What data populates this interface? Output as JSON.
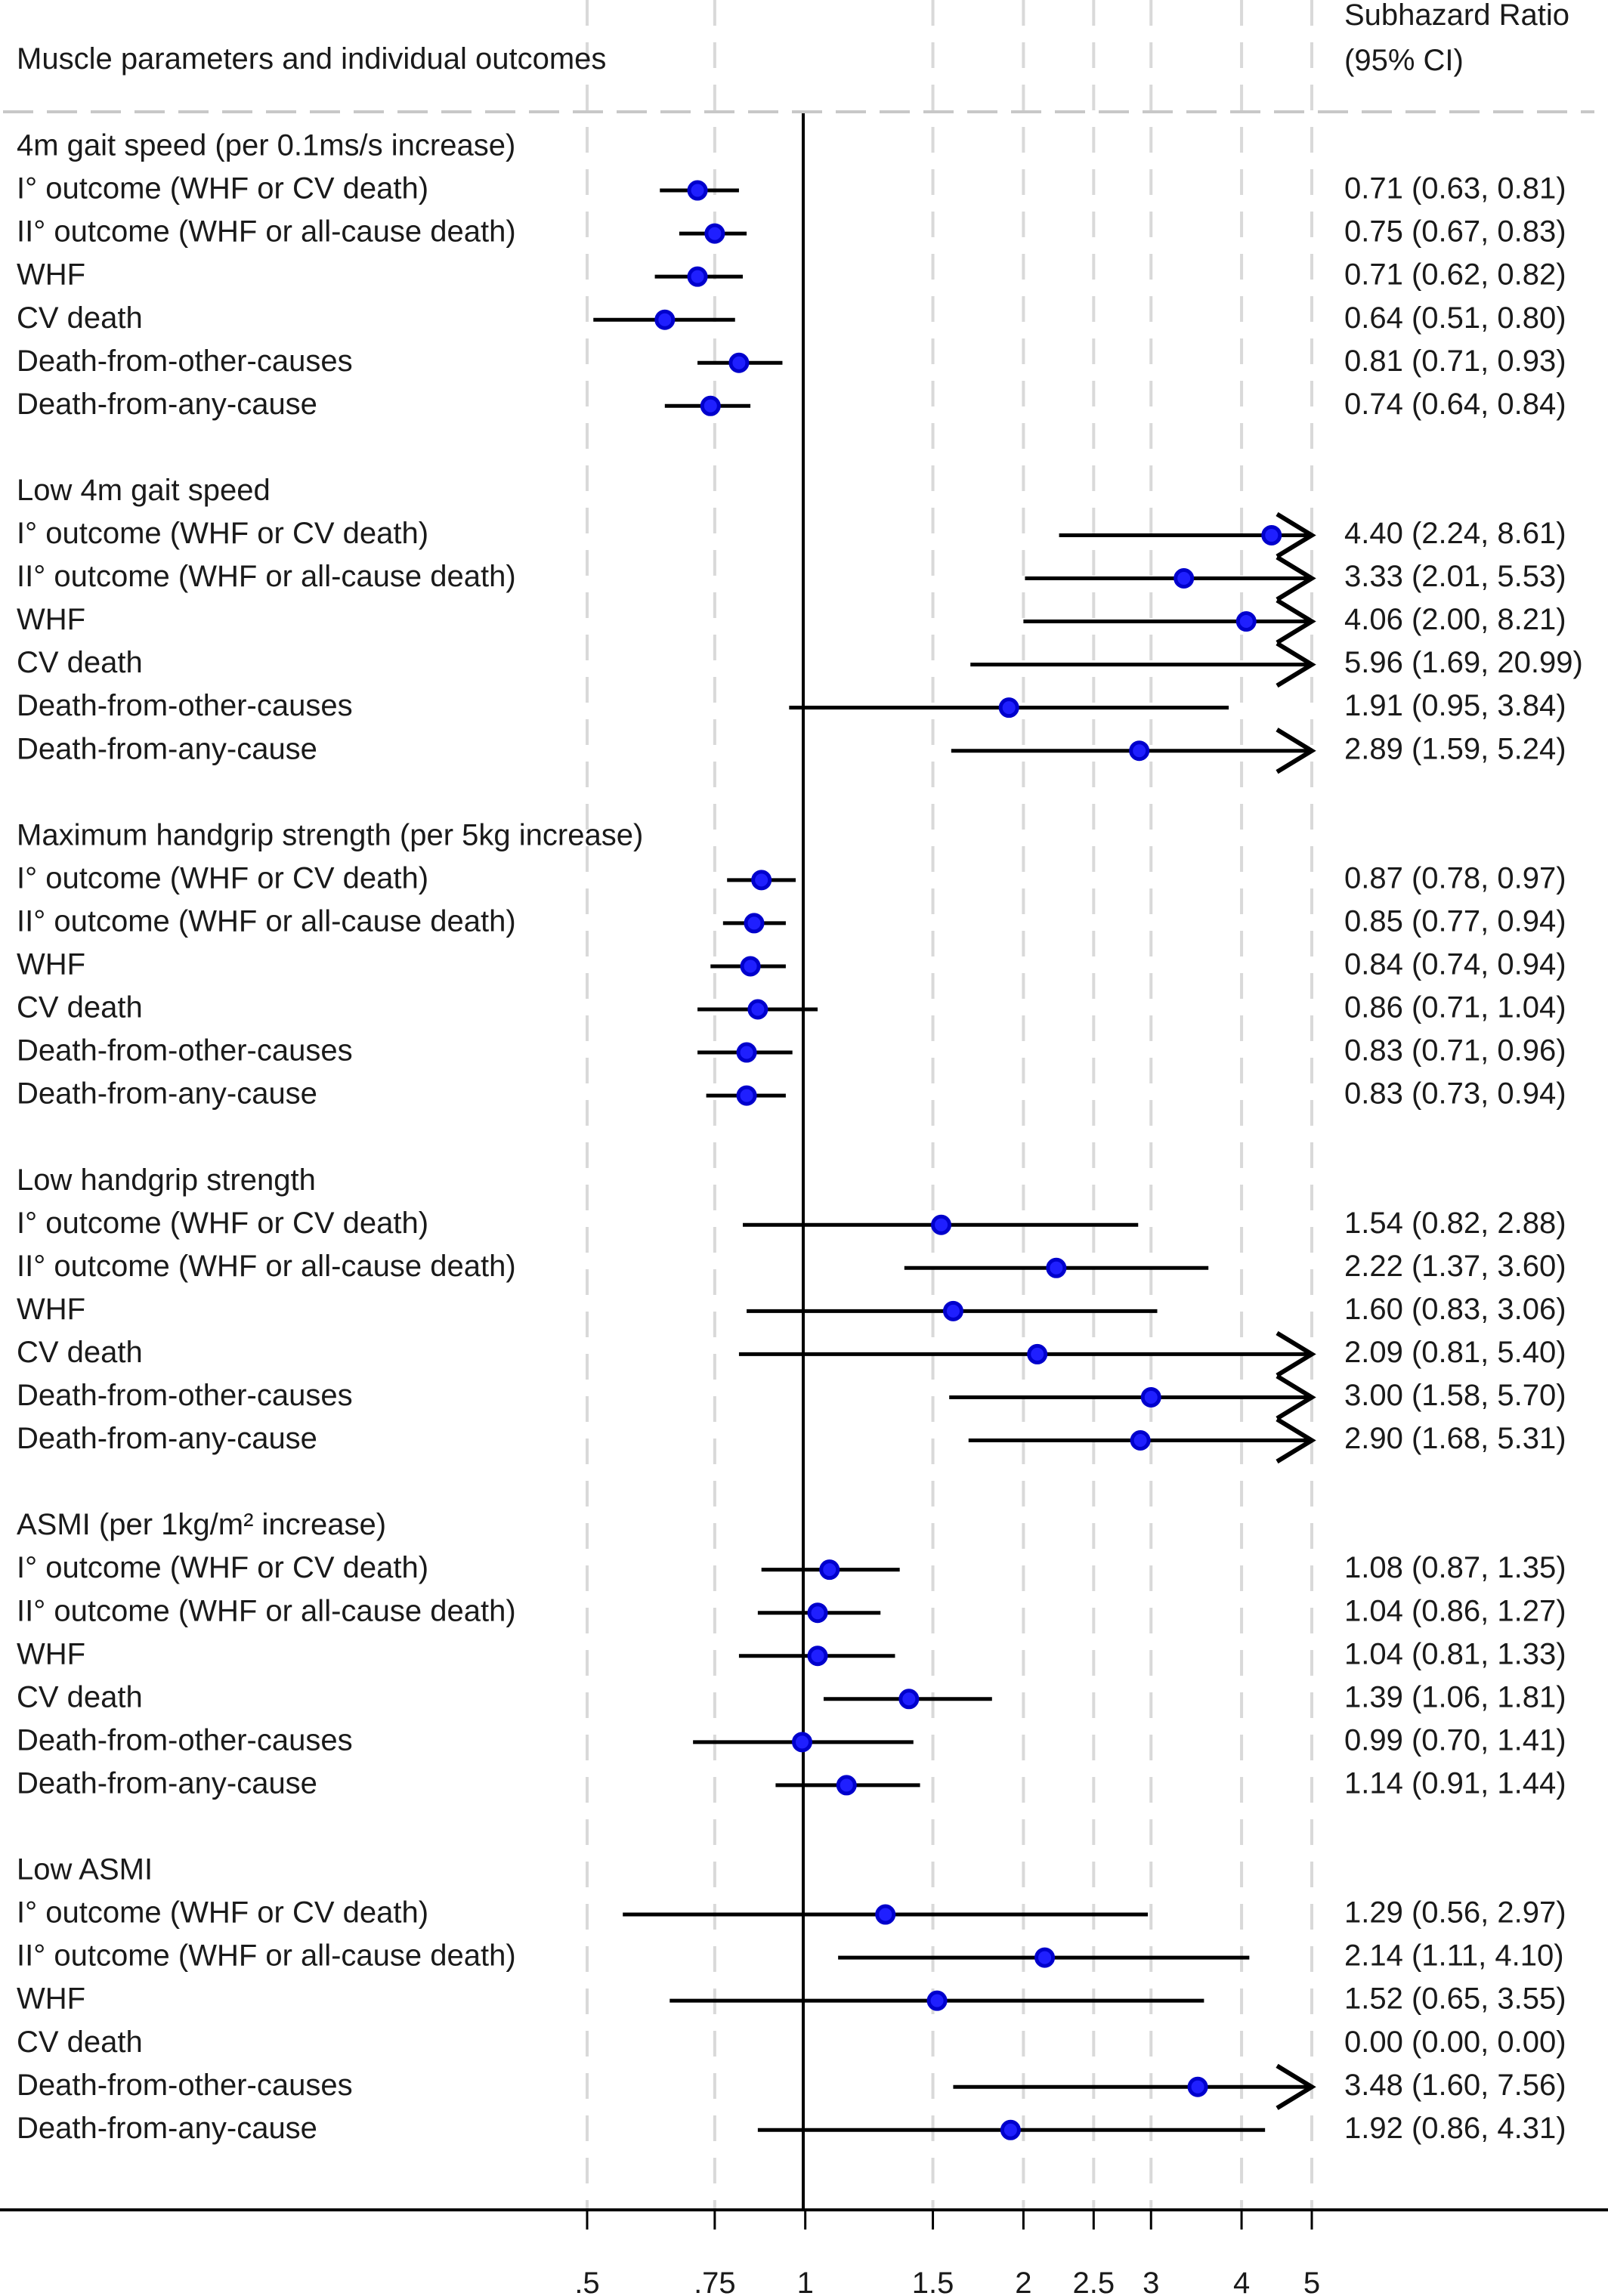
{
  "chart_data": {
    "type": "forest",
    "xscale": "log",
    "xlim": [
      0.5,
      5
    ],
    "xticks": [
      {
        "value": 0.5,
        "label": ".5"
      },
      {
        "value": 0.75,
        "label": ".75"
      },
      {
        "value": 1,
        "label": "1"
      },
      {
        "value": 1.5,
        "label": "1.5"
      },
      {
        "value": 2,
        "label": "2"
      },
      {
        "value": 2.5,
        "label": "2.5"
      },
      {
        "value": 3,
        "label": "3"
      },
      {
        "value": 4,
        "label": "4"
      },
      {
        "value": 5,
        "label": "5"
      }
    ],
    "reference_line": 1,
    "header_left": "Muscle parameters and individual outcomes",
    "header_right_line1": "Subhazard Ratio",
    "header_right_line2": "(95% CI)",
    "colors": {
      "point": "#1f1fff",
      "line": "#000000",
      "grid": "#d9d9d9",
      "separator": "#c8c8c8"
    },
    "groups": [
      {
        "title": "4m gait speed (per 0.1ms/s increase)",
        "rows": [
          {
            "label": "I° outcome (WHF or CV death)",
            "est": 0.71,
            "lo": 0.63,
            "hi": 0.81,
            "text": "0.71 (0.63, 0.81)"
          },
          {
            "label": "II° outcome (WHF or all-cause death)",
            "est": 0.75,
            "lo": 0.67,
            "hi": 0.83,
            "text": "0.75 (0.67, 0.83)"
          },
          {
            "label": "WHF",
            "est": 0.71,
            "lo": 0.62,
            "hi": 0.82,
            "text": "0.71 (0.62, 0.82)"
          },
          {
            "label": "CV death",
            "est": 0.64,
            "lo": 0.51,
            "hi": 0.8,
            "text": "0.64 (0.51, 0.80)"
          },
          {
            "label": "Death-from-other-causes",
            "est": 0.81,
            "lo": 0.71,
            "hi": 0.93,
            "text": "0.81 (0.71, 0.93)"
          },
          {
            "label": "Death-from-any-cause",
            "est": 0.74,
            "lo": 0.64,
            "hi": 0.84,
            "text": "0.74 (0.64, 0.84)"
          }
        ]
      },
      {
        "title": "Low 4m gait speed",
        "rows": [
          {
            "label": "I° outcome (WHF or CV death)",
            "est": 4.4,
            "lo": 2.24,
            "hi": 8.61,
            "text": "4.40 (2.24, 8.61)"
          },
          {
            "label": "II° outcome (WHF or all-cause death)",
            "est": 3.33,
            "lo": 2.01,
            "hi": 5.53,
            "text": "3.33 (2.01, 5.53)"
          },
          {
            "label": "WHF",
            "est": 4.06,
            "lo": 2.0,
            "hi": 8.21,
            "text": "4.06 (2.00, 8.21)"
          },
          {
            "label": "CV death",
            "est": 5.96,
            "lo": 1.69,
            "hi": 20.99,
            "text": "5.96 (1.69, 20.99)"
          },
          {
            "label": "Death-from-other-causes",
            "est": 1.91,
            "lo": 0.95,
            "hi": 3.84,
            "text": "1.91 (0.95, 3.84)"
          },
          {
            "label": "Death-from-any-cause",
            "est": 2.89,
            "lo": 1.59,
            "hi": 5.24,
            "text": "2.89 (1.59, 5.24)"
          }
        ]
      },
      {
        "title": "Maximum handgrip strength (per 5kg increase)",
        "rows": [
          {
            "label": "I° outcome (WHF or CV death)",
            "est": 0.87,
            "lo": 0.78,
            "hi": 0.97,
            "text": "0.87 (0.78, 0.97)"
          },
          {
            "label": "II° outcome (WHF or all-cause death)",
            "est": 0.85,
            "lo": 0.77,
            "hi": 0.94,
            "text": "0.85 (0.77, 0.94)"
          },
          {
            "label": "WHF",
            "est": 0.84,
            "lo": 0.74,
            "hi": 0.94,
            "text": "0.84 (0.74, 0.94)"
          },
          {
            "label": "CV death",
            "est": 0.86,
            "lo": 0.71,
            "hi": 1.04,
            "text": "0.86 (0.71, 1.04)"
          },
          {
            "label": "Death-from-other-causes",
            "est": 0.83,
            "lo": 0.71,
            "hi": 0.96,
            "text": "0.83 (0.71, 0.96)"
          },
          {
            "label": "Death-from-any-cause",
            "est": 0.83,
            "lo": 0.73,
            "hi": 0.94,
            "text": "0.83 (0.73, 0.94)"
          }
        ]
      },
      {
        "title": "Low handgrip strength",
        "rows": [
          {
            "label": "I° outcome (WHF or CV death)",
            "est": 1.54,
            "lo": 0.82,
            "hi": 2.88,
            "text": "1.54 (0.82, 2.88)"
          },
          {
            "label": "II° outcome (WHF or all-cause death)",
            "est": 2.22,
            "lo": 1.37,
            "hi": 3.6,
            "text": "2.22 (1.37, 3.60)"
          },
          {
            "label": "WHF",
            "est": 1.6,
            "lo": 0.83,
            "hi": 3.06,
            "text": "1.60 (0.83, 3.06)"
          },
          {
            "label": "CV death",
            "est": 2.09,
            "lo": 0.81,
            "hi": 5.4,
            "text": "2.09 (0.81, 5.40)"
          },
          {
            "label": "Death-from-other-causes",
            "est": 3.0,
            "lo": 1.58,
            "hi": 5.7,
            "text": "3.00 (1.58, 5.70)"
          },
          {
            "label": "Death-from-any-cause",
            "est": 2.9,
            "lo": 1.68,
            "hi": 5.31,
            "text": "2.90 (1.68, 5.31)"
          }
        ]
      },
      {
        "title": "ASMI (per 1kg/m² increase)",
        "rows": [
          {
            "label": "I° outcome (WHF or CV death)",
            "est": 1.08,
            "lo": 0.87,
            "hi": 1.35,
            "text": "1.08 (0.87, 1.35)"
          },
          {
            "label": "II° outcome (WHF or all-cause death)",
            "est": 1.04,
            "lo": 0.86,
            "hi": 1.27,
            "text": "1.04 (0.86, 1.27)"
          },
          {
            "label": "WHF",
            "est": 1.04,
            "lo": 0.81,
            "hi": 1.33,
            "text": "1.04 (0.81, 1.33)"
          },
          {
            "label": "CV death",
            "est": 1.39,
            "lo": 1.06,
            "hi": 1.81,
            "text": "1.39 (1.06, 1.81)"
          },
          {
            "label": "Death-from-other-causes",
            "est": 0.99,
            "lo": 0.7,
            "hi": 1.41,
            "text": "0.99 (0.70, 1.41)"
          },
          {
            "label": "Death-from-any-cause",
            "est": 1.14,
            "lo": 0.91,
            "hi": 1.44,
            "text": "1.14 (0.91, 1.44)"
          }
        ]
      },
      {
        "title": "Low ASMI",
        "rows": [
          {
            "label": "I° outcome (WHF or CV death)",
            "est": 1.29,
            "lo": 0.56,
            "hi": 2.97,
            "text": "1.29 (0.56, 2.97)"
          },
          {
            "label": "II° outcome (WHF or all-cause death)",
            "est": 2.14,
            "lo": 1.11,
            "hi": 4.1,
            "text": "2.14 (1.11, 4.10)"
          },
          {
            "label": "WHF",
            "est": 1.52,
            "lo": 0.65,
            "hi": 3.55,
            "text": "1.52 (0.65, 3.55)"
          },
          {
            "label": "CV death",
            "est": 0,
            "lo": 0,
            "hi": 0,
            "text": "0.00 (0.00, 0.00)"
          },
          {
            "label": "Death-from-other-causes",
            "est": 3.48,
            "lo": 1.6,
            "hi": 7.56,
            "text": "3.48 (1.60, 7.56)"
          },
          {
            "label": "Death-from-any-cause",
            "est": 1.92,
            "lo": 0.86,
            "hi": 4.31,
            "text": "1.92 (0.86, 4.31)"
          }
        ]
      }
    ]
  }
}
